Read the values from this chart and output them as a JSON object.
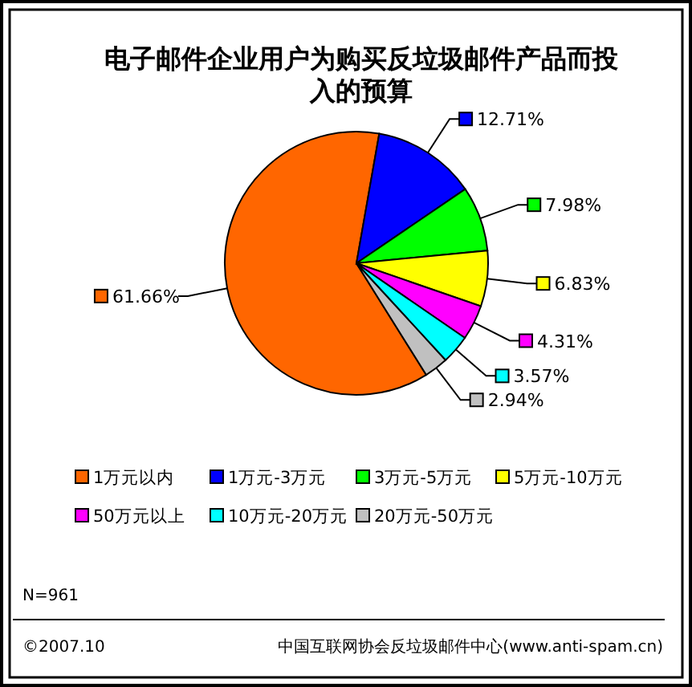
{
  "chart_data": {
    "type": "pie",
    "title": "电子邮件企业用户为购买反垃圾邮件产品而投入的预算",
    "categories": [
      "1万元以内",
      "1万元-3万元",
      "3万元-5万元",
      "5万元-10万元",
      "50万元以上",
      "10万元-20万元",
      "20万元-50万元"
    ],
    "values": [
      61.66,
      12.71,
      7.98,
      6.83,
      4.31,
      3.57,
      2.94
    ],
    "colors": [
      "#ff6600",
      "#0000ff",
      "#00ff00",
      "#ffff00",
      "#ff00ff",
      "#00ffff",
      "#c0c0c0"
    ],
    "value_labels": [
      "61.66%",
      "12.71%",
      "7.98%",
      "6.83%",
      "4.31%",
      "3.57%",
      "2.94%"
    ],
    "legend": "bottom",
    "annotations": [
      "N=961",
      "©2007.10",
      "中国互联网协会反垃圾邮件中心(www.anti-spam.cn)"
    ]
  }
}
